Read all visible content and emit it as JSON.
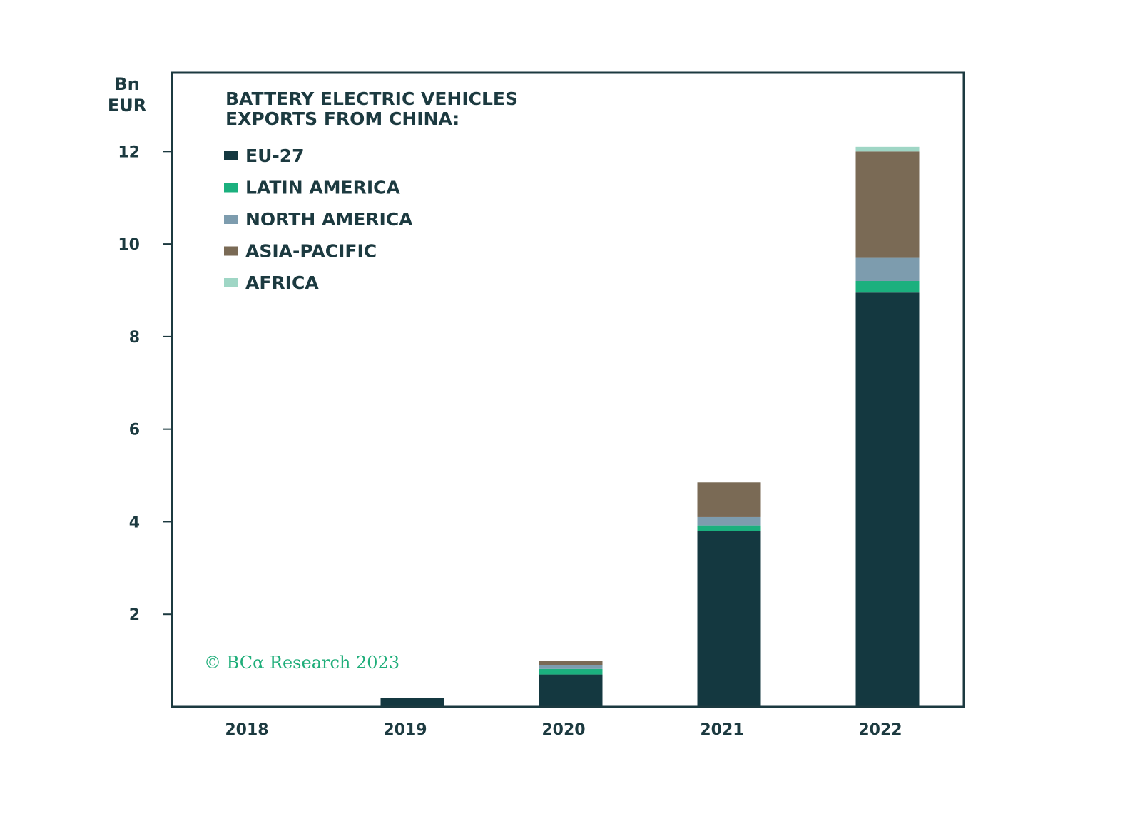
{
  "chart_data": {
    "type": "bar",
    "stacked": true,
    "title": "BATTERY ELECTRIC VEHICLES EXPORTS FROM CHINA:",
    "title_lines": [
      "BATTERY ELECTRIC VEHICLES",
      "EXPORTS FROM CHINA:"
    ],
    "ylabel_lines": [
      "Bn",
      "EUR"
    ],
    "xlabel": "",
    "ylim": [
      0,
      13.7
    ],
    "yticks": [
      2,
      4,
      6,
      8,
      10,
      12
    ],
    "ytick_labels": [
      "2",
      "4",
      "6",
      "8",
      "10",
      "12"
    ],
    "grid": false,
    "legend_position": "top-left",
    "categories": [
      "2018",
      "2019",
      "2020",
      "2021",
      "2022"
    ],
    "series": [
      {
        "name": "EU-27",
        "color": "#143840",
        "values": [
          0.0,
          0.2,
          0.7,
          3.8,
          8.95
        ]
      },
      {
        "name": "LATIN AMERICA",
        "color": "#1bb07e",
        "values": [
          0.0,
          0.0,
          0.12,
          0.12,
          0.25
        ]
      },
      {
        "name": "NORTH AMERICA",
        "color": "#7d9cae",
        "values": [
          0.0,
          0.0,
          0.08,
          0.18,
          0.5
        ]
      },
      {
        "name": "ASIA-PACIFIC",
        "color": "#7a6a55",
        "values": [
          0.0,
          0.0,
          0.1,
          0.75,
          2.3
        ]
      },
      {
        "name": "AFRICA",
        "color": "#9fd6c5",
        "values": [
          0.0,
          0.0,
          0.0,
          0.0,
          0.1
        ]
      }
    ],
    "annotation": "© BCα Research 2023"
  }
}
